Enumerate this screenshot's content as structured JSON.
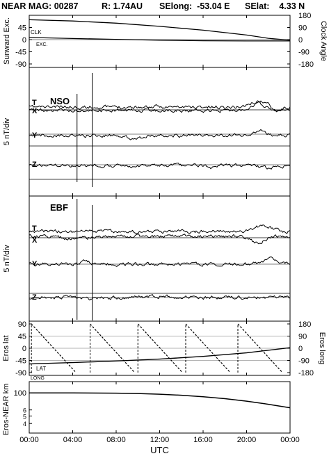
{
  "header": {
    "title": "NEAR MAG: 00287",
    "r": "R: 1.74AU",
    "selong": "SElong:  -53.04 E",
    "selat": "SElat:    4.33 N"
  },
  "chart_data": [
    {
      "type": "line",
      "panel": "sunward",
      "ylabel_left": "Sunward Exc.",
      "ylabel_right": "Clock Angle",
      "yticks_left": [
        "45",
        "0",
        "-45",
        "-90"
      ],
      "yticks_right": [
        "180",
        "90",
        "0",
        "-90",
        "-180"
      ],
      "labels": {
        "clk": "CLK",
        "exc": "EXC."
      },
      "ylim_left": [
        -90,
        90
      ],
      "ylim_right": [
        -180,
        180
      ],
      "series": [
        {
          "name": "CLK",
          "axis": "right",
          "x": [
            0,
            4,
            8,
            12,
            16,
            20,
            22,
            24
          ],
          "y": [
            147,
            138,
            122,
            98,
            70,
            34,
            10,
            -4
          ]
        },
        {
          "name": "EXC.",
          "axis": "left",
          "x": [
            0,
            4,
            8,
            12,
            16,
            20,
            22,
            24
          ],
          "y": [
            8,
            4,
            1,
            -2,
            -4,
            -5,
            -5,
            -5
          ]
        }
      ]
    },
    {
      "type": "line",
      "panel": "nso",
      "frame": "NSO",
      "ylabel": "5 nT/div",
      "components": [
        "T",
        "X",
        "Y",
        "Z"
      ]
    },
    {
      "type": "line",
      "panel": "ebf",
      "frame": "EBF",
      "ylabel": "5 nT/div",
      "components": [
        "T",
        "X",
        "Y",
        "Z"
      ]
    },
    {
      "type": "line",
      "panel": "eros",
      "ylabel_left": "Eros lat",
      "ylabel_right": "Eros long",
      "yticks_left": [
        "90",
        "45",
        "0",
        "-45",
        "-90"
      ],
      "yticks_right": [
        "180",
        "90",
        "0",
        "-90",
        "-180"
      ],
      "labels": {
        "lat": "LAT",
        "long": "LONG"
      },
      "ylim_left": [
        -90,
        90
      ],
      "ylim_right": [
        -180,
        180
      ],
      "series": [
        {
          "name": "LAT",
          "axis": "left",
          "x": [
            0,
            4,
            8,
            12,
            16,
            20,
            24
          ],
          "y": [
            -58,
            -53,
            -47,
            -40,
            -30,
            -17,
            2
          ]
        },
        {
          "name": "LONG",
          "axis": "right",
          "resets": [
            0.2,
            5.6,
            10.0,
            14.4,
            19.2
          ]
        }
      ]
    },
    {
      "type": "line",
      "panel": "range",
      "ylabel": "Eros-NEAR km",
      "yscale": "log",
      "yticks": [
        "100",
        "6",
        "5",
        "4"
      ],
      "ylim": [
        30,
        140
      ],
      "series": [
        {
          "name": "Eros-NEAR km",
          "x": [
            0,
            4,
            8,
            10,
            12,
            14,
            16,
            18,
            20,
            22,
            24
          ],
          "y": [
            100,
            100,
            99,
            98,
            96,
            93,
            89,
            84,
            78,
            71,
            64
          ]
        }
      ]
    }
  ],
  "xaxis": {
    "ticks": [
      "00:00",
      "04:00",
      "08:00",
      "12:00",
      "16:00",
      "20:00",
      "00:00"
    ],
    "label": "UTC"
  }
}
